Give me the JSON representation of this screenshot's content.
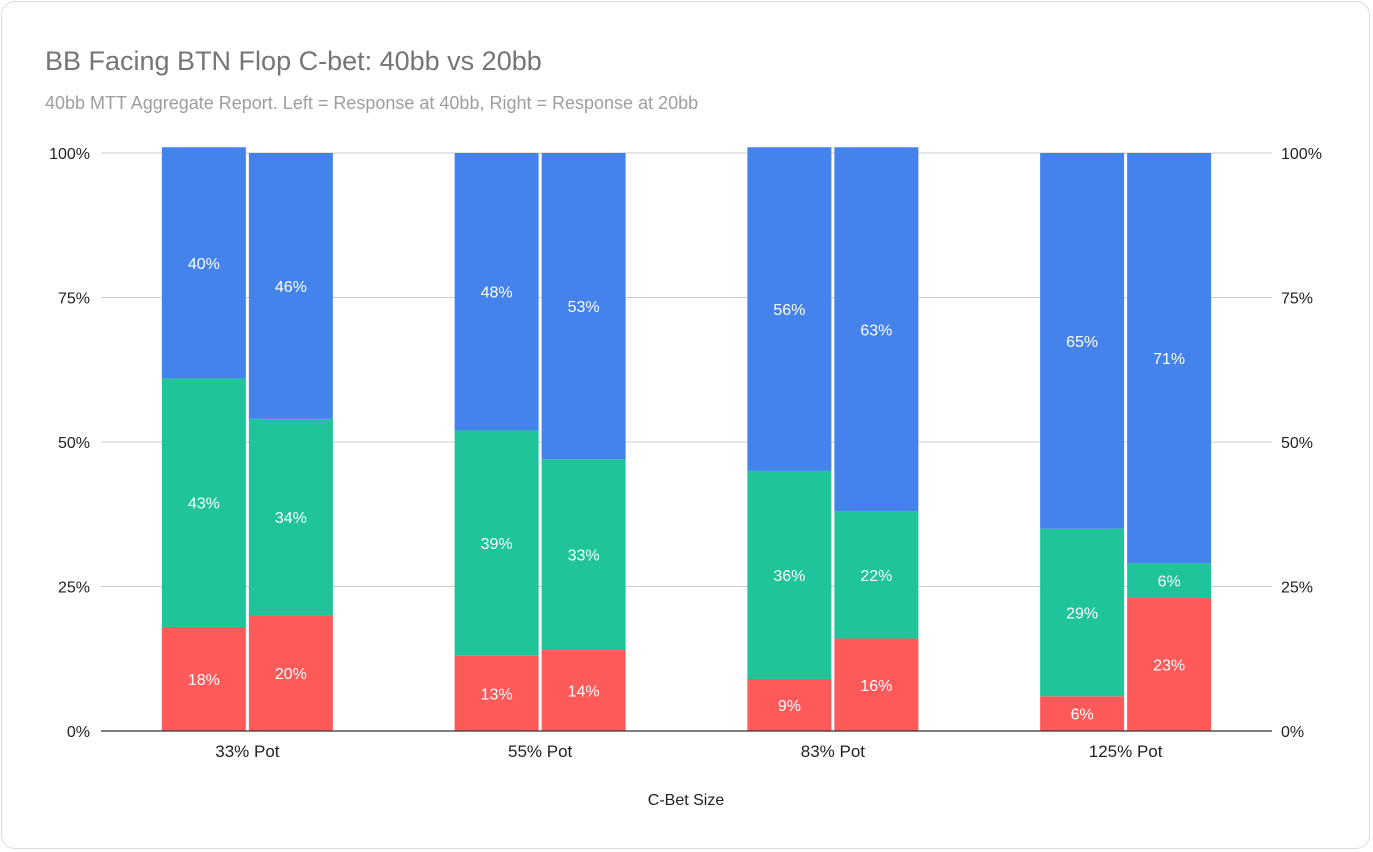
{
  "chart_data": {
    "type": "bar",
    "stacked": true,
    "title": "BB Facing BTN Flop C-bet: 40bb vs 20bb",
    "subtitle": "40bb MTT Aggregate Report. Left = Response at 40bb, Right = Response at 20bb",
    "xlabel": "C-Bet Size",
    "ylabel": "",
    "ylim": [
      0,
      100
    ],
    "y_ticks": [
      "0%",
      "25%",
      "50%",
      "75%",
      "100%"
    ],
    "y_ticks_right": [
      "0%",
      "25%",
      "50%",
      "75%",
      "100%"
    ],
    "grid": true,
    "legend": "none",
    "categories": [
      "33% Pot",
      "55% Pot",
      "83% Pot",
      "125% Pot"
    ],
    "bars_per_category": 2,
    "series": [
      {
        "color": "#ff5a5a",
        "values": [
          [
            18,
            20
          ],
          [
            13,
            14
          ],
          [
            9,
            16
          ],
          [
            6,
            23
          ]
        ],
        "labels": [
          [
            "18%",
            "20%"
          ],
          [
            "13%",
            "14%"
          ],
          [
            "9%",
            "16%"
          ],
          [
            "6%",
            "23%"
          ]
        ]
      },
      {
        "color": "#1fc49b",
        "values": [
          [
            43,
            34
          ],
          [
            39,
            33
          ],
          [
            36,
            22
          ],
          [
            29,
            6
          ]
        ],
        "labels": [
          [
            "43%",
            "34%"
          ],
          [
            "39%",
            "33%"
          ],
          [
            "36%",
            "22%"
          ],
          [
            "29%",
            "6%"
          ]
        ]
      },
      {
        "color": "#4583ec",
        "values": [
          [
            40,
            46
          ],
          [
            48,
            53
          ],
          [
            56,
            63
          ],
          [
            65,
            71
          ]
        ],
        "labels": [
          [
            "40%",
            "46%"
          ],
          [
            "48%",
            "53%"
          ],
          [
            "56%",
            "63%"
          ],
          [
            "65%",
            "71%"
          ]
        ]
      }
    ]
  }
}
